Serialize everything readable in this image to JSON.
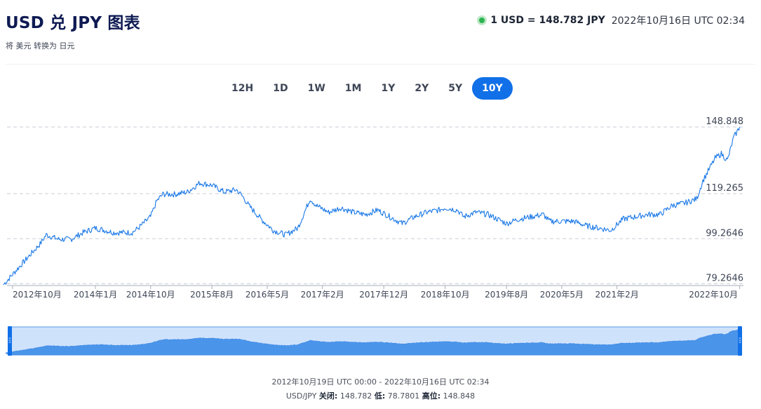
{
  "header": {
    "title": "USD 兑 JPY 图表",
    "subtitle": "将 美元 转换为 日元",
    "rate": "1 USD = 148.782 JPY",
    "timestamp": "2022年10月16日 UTC 02:34"
  },
  "tabs": [
    {
      "label": "12H",
      "active": false
    },
    {
      "label": "1D",
      "active": false
    },
    {
      "label": "1W",
      "active": false
    },
    {
      "label": "1M",
      "active": false
    },
    {
      "label": "1Y",
      "active": false
    },
    {
      "label": "2Y",
      "active": false
    },
    {
      "label": "5Y",
      "active": false
    },
    {
      "label": "10Y",
      "active": true
    }
  ],
  "colors": {
    "line": "#1a78e6",
    "accent": "#1170e8",
    "navigator_fill": "#4a95ea",
    "navigator_bg": "#cfe2fb",
    "live": "#2bb34f"
  },
  "chart_data": {
    "type": "line",
    "series": [
      {
        "name": "USD/JPY",
        "x": [
          "2012-10",
          "2013-01",
          "2013-04",
          "2013-05",
          "2013-07",
          "2013-09",
          "2013-11",
          "2014-01",
          "2014-04",
          "2014-07",
          "2014-08",
          "2014-10",
          "2014-11",
          "2014-12",
          "2015-02",
          "2015-04",
          "2015-06",
          "2015-08",
          "2015-10",
          "2015-12",
          "2016-01",
          "2016-02",
          "2016-04",
          "2016-06",
          "2016-08",
          "2016-10",
          "2016-12",
          "2017-01",
          "2017-03",
          "2017-05",
          "2017-07",
          "2017-09",
          "2017-11",
          "2018-01",
          "2018-03",
          "2018-05",
          "2018-07",
          "2018-09",
          "2018-10",
          "2018-12",
          "2019-01",
          "2019-03",
          "2019-05",
          "2019-08",
          "2019-10",
          "2019-12",
          "2020-02",
          "2020-03",
          "2020-05",
          "2020-07",
          "2020-09",
          "2020-11",
          "2021-01",
          "2021-03",
          "2021-05",
          "2021-07",
          "2021-09",
          "2021-11",
          "2022-01",
          "2022-03",
          "2022-04",
          "2022-05",
          "2022-06",
          "2022-07",
          "2022-08",
          "2022-09",
          "2022-10"
        ],
        "values": [
          78.8,
          88,
          97,
          101,
          99,
          99,
          102,
          104,
          102,
          102,
          104,
          109,
          116,
          119,
          119,
          120,
          124,
          123,
          120,
          121,
          118,
          114,
          108,
          103,
          101,
          104,
          117,
          114,
          111,
          113,
          111,
          110,
          112,
          109,
          106,
          109,
          111,
          112,
          113,
          112,
          109,
          111,
          110,
          106,
          108,
          109,
          110,
          107,
          107,
          107,
          105,
          104,
          103,
          108,
          109,
          110,
          110,
          114,
          115,
          117,
          125,
          130,
          135,
          137,
          134,
          144,
          148.8
        ]
      }
    ],
    "y_ticks": [
      "148.848",
      "119.265",
      "99.2646",
      "79.2646"
    ],
    "x_ticks": [
      "2012年10月",
      "2014年1月",
      "2014年10月",
      "2015年8月",
      "2016年5月",
      "2017年2月",
      "2017年12月",
      "2018年10月",
      "2019年8月",
      "2020年5月",
      "2021年2月",
      "2022年10月"
    ],
    "ylim": [
      78.8,
      148.848
    ],
    "grid": true,
    "range_start": "2012年10月19日 UTC 00:00",
    "range_end": "2022年10月16日 UTC 02:34"
  },
  "footer": {
    "range_sep": " - ",
    "pair": "USD/JPY",
    "close_label": "关闭:",
    "close_value": "148.782",
    "low_label": "低:",
    "low_value": "78.7801",
    "high_label": "高位:",
    "high_value": "148.848"
  }
}
